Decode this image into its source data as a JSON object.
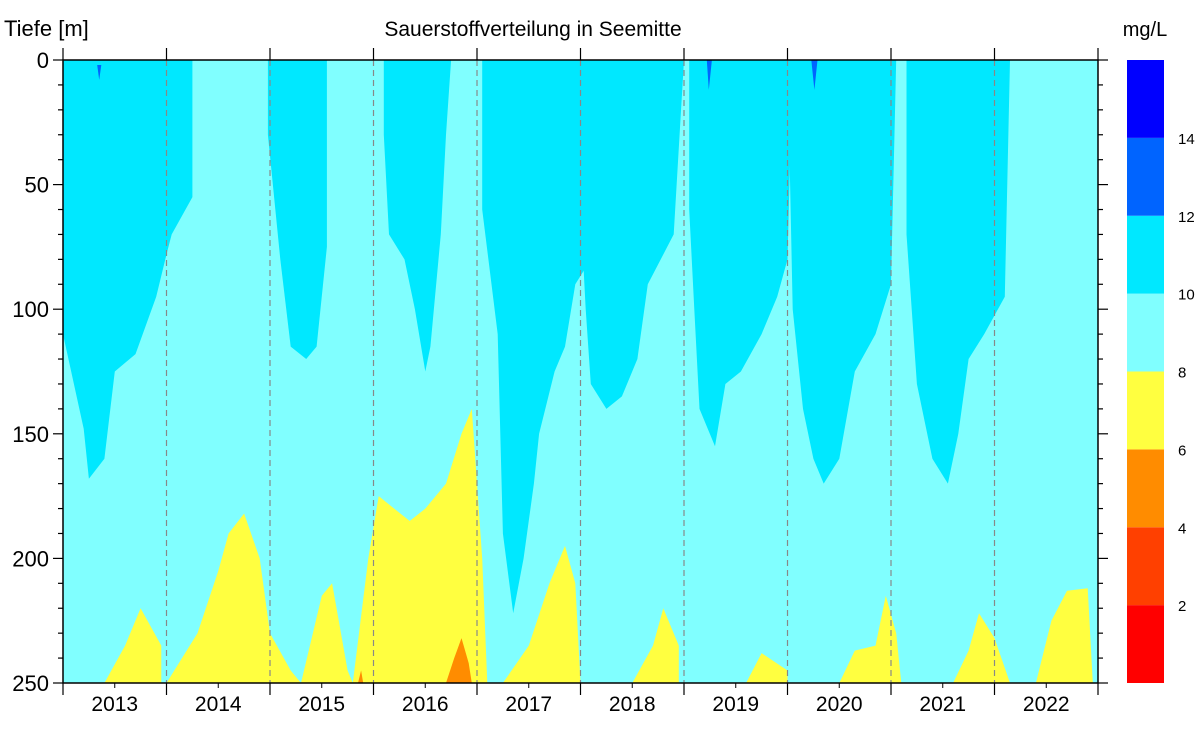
{
  "chart_data": {
    "type": "heatmap",
    "title": "Sauerstoffverteilung in Seemitte",
    "ylabel": "Tiefe [m]",
    "xlabel": "",
    "ylim": [
      0,
      250
    ],
    "y_inverted": true,
    "y_ticks": [
      "0",
      "50",
      "100",
      "150",
      "200",
      "250"
    ],
    "y_tick_values": [
      0,
      50,
      100,
      150,
      200,
      250
    ],
    "x_range": [
      2013,
      2023
    ],
    "x_categories": [
      "2013",
      "2014",
      "2015",
      "2016",
      "2017",
      "2018",
      "2019",
      "2020",
      "2021",
      "2022"
    ],
    "year_separators": "dashed-gray",
    "colorbar": {
      "unit": "mg/L",
      "levels": [
        0,
        2,
        4,
        6,
        8,
        10,
        12,
        14,
        16
      ],
      "tick_labels": [
        "2",
        "4",
        "6",
        "8",
        "10",
        "12",
        "14"
      ],
      "colors": [
        "#ff0000",
        "#ff4000",
        "#ff8c00",
        "#ffff40",
        "#80ffff",
        "#00e8ff",
        "#0064ff",
        "#0000ff"
      ]
    },
    "background_class_color": "#80ffff",
    "regions": [
      {
        "class": "10-12",
        "color": "#00e8ff",
        "boundary": [
          [
            2013.0,
            0
          ],
          [
            2013.0,
            110
          ],
          [
            2013.2,
            148
          ],
          [
            2013.25,
            168
          ],
          [
            2013.4,
            160
          ],
          [
            2013.5,
            125
          ],
          [
            2013.7,
            118
          ],
          [
            2013.9,
            95
          ],
          [
            2014.0,
            78
          ],
          [
            2014.05,
            70
          ],
          [
            2014.25,
            55
          ],
          [
            2014.25,
            0
          ]
        ]
      },
      {
        "class": "10-12",
        "color": "#00e8ff",
        "boundary": [
          [
            2014.98,
            0
          ],
          [
            2014.98,
            30
          ],
          [
            2015.1,
            80
          ],
          [
            2015.2,
            115
          ],
          [
            2015.35,
            120
          ],
          [
            2015.45,
            115
          ],
          [
            2015.55,
            75
          ],
          [
            2015.55,
            0
          ]
        ]
      },
      {
        "class": "10-12",
        "color": "#00e8ff",
        "boundary": [
          [
            2016.1,
            0
          ],
          [
            2016.1,
            30
          ],
          [
            2016.15,
            70
          ],
          [
            2016.3,
            80
          ],
          [
            2016.4,
            100
          ],
          [
            2016.5,
            125
          ],
          [
            2016.55,
            115
          ],
          [
            2016.65,
            70
          ],
          [
            2016.7,
            30
          ],
          [
            2016.75,
            0
          ]
        ]
      },
      {
        "class": "10-12",
        "color": "#00e8ff",
        "boundary": [
          [
            2017.05,
            0
          ],
          [
            2017.05,
            60
          ],
          [
            2017.2,
            110
          ],
          [
            2017.25,
            190
          ],
          [
            2017.35,
            222
          ],
          [
            2017.45,
            200
          ],
          [
            2017.55,
            170
          ],
          [
            2017.6,
            150
          ],
          [
            2017.75,
            125
          ],
          [
            2017.85,
            115
          ],
          [
            2017.95,
            90
          ],
          [
            2018.1,
            80
          ],
          [
            2018.2,
            60
          ],
          [
            2018.25,
            0
          ]
        ]
      },
      {
        "class": "10-12",
        "color": "#00e8ff",
        "boundary": [
          [
            2018.0,
            0
          ],
          [
            2018.0,
            60
          ],
          [
            2018.05,
            100
          ],
          [
            2018.1,
            130
          ],
          [
            2018.25,
            140
          ],
          [
            2018.4,
            135
          ],
          [
            2018.55,
            120
          ],
          [
            2018.65,
            90
          ],
          [
            2018.9,
            70
          ],
          [
            2019.0,
            0
          ]
        ]
      },
      {
        "class": "10-12",
        "color": "#00e8ff",
        "boundary": [
          [
            2019.05,
            0
          ],
          [
            2019.05,
            60
          ],
          [
            2019.1,
            100
          ],
          [
            2019.15,
            140
          ],
          [
            2019.3,
            155
          ],
          [
            2019.4,
            130
          ],
          [
            2019.55,
            125
          ],
          [
            2019.75,
            110
          ],
          [
            2019.9,
            95
          ],
          [
            2020.0,
            80
          ],
          [
            2020.05,
            0
          ]
        ]
      },
      {
        "class": "10-12",
        "color": "#00e8ff",
        "boundary": [
          [
            2020.0,
            0
          ],
          [
            2020.05,
            100
          ],
          [
            2020.15,
            140
          ],
          [
            2020.25,
            160
          ],
          [
            2020.35,
            170
          ],
          [
            2020.5,
            160
          ],
          [
            2020.65,
            125
          ],
          [
            2020.85,
            110
          ],
          [
            2021.0,
            90
          ],
          [
            2021.05,
            0
          ]
        ]
      },
      {
        "class": "10-12",
        "color": "#00e8ff",
        "boundary": [
          [
            2021.15,
            0
          ],
          [
            2021.15,
            70
          ],
          [
            2021.25,
            130
          ],
          [
            2021.4,
            160
          ],
          [
            2021.55,
            170
          ],
          [
            2021.65,
            150
          ],
          [
            2021.75,
            120
          ],
          [
            2021.9,
            110
          ],
          [
            2022.1,
            95
          ],
          [
            2022.15,
            0
          ]
        ]
      },
      {
        "class": "6-8",
        "color": "#ffff40",
        "boundary": [
          [
            2013.4,
            250
          ],
          [
            2013.6,
            235
          ],
          [
            2013.75,
            220
          ],
          [
            2013.95,
            235
          ],
          [
            2013.95,
            250
          ]
        ]
      },
      {
        "class": "6-8",
        "color": "#ffff40",
        "boundary": [
          [
            2014.0,
            250
          ],
          [
            2014.3,
            230
          ],
          [
            2014.5,
            205
          ],
          [
            2014.6,
            190
          ],
          [
            2014.75,
            182
          ],
          [
            2014.9,
            200
          ],
          [
            2015.0,
            230
          ],
          [
            2015.2,
            245
          ],
          [
            2015.3,
            250
          ]
        ]
      },
      {
        "class": "6-8",
        "color": "#ffff40",
        "boundary": [
          [
            2015.3,
            250
          ],
          [
            2015.5,
            215
          ],
          [
            2015.6,
            210
          ],
          [
            2015.75,
            245
          ],
          [
            2015.8,
            250
          ]
        ]
      },
      {
        "class": "6-8",
        "color": "#ffff40",
        "boundary": [
          [
            2015.8,
            250
          ],
          [
            2015.95,
            200
          ],
          [
            2016.05,
            175
          ],
          [
            2016.2,
            180
          ],
          [
            2016.35,
            185
          ],
          [
            2016.5,
            180
          ],
          [
            2016.7,
            170
          ],
          [
            2016.85,
            150
          ],
          [
            2016.95,
            140
          ],
          [
            2017.05,
            200
          ],
          [
            2017.1,
            250
          ]
        ]
      },
      {
        "class": "6-8",
        "color": "#ffff40",
        "boundary": [
          [
            2017.25,
            250
          ],
          [
            2017.5,
            235
          ],
          [
            2017.7,
            210
          ],
          [
            2017.85,
            195
          ],
          [
            2017.95,
            210
          ],
          [
            2018.0,
            250
          ]
        ]
      },
      {
        "class": "6-8",
        "color": "#ffff40",
        "boundary": [
          [
            2018.5,
            250
          ],
          [
            2018.7,
            235
          ],
          [
            2018.8,
            220
          ],
          [
            2018.95,
            235
          ],
          [
            2018.95,
            250
          ]
        ]
      },
      {
        "class": "6-8",
        "color": "#ffff40",
        "boundary": [
          [
            2019.6,
            250
          ],
          [
            2019.75,
            238
          ],
          [
            2020.0,
            245
          ],
          [
            2020.0,
            250
          ]
        ]
      },
      {
        "class": "6-8",
        "color": "#ffff40",
        "boundary": [
          [
            2020.5,
            250
          ],
          [
            2020.65,
            237
          ],
          [
            2020.85,
            235
          ],
          [
            2020.95,
            215
          ],
          [
            2021.05,
            230
          ],
          [
            2021.1,
            250
          ]
        ]
      },
      {
        "class": "6-8",
        "color": "#ffff40",
        "boundary": [
          [
            2021.6,
            250
          ],
          [
            2021.75,
            237
          ],
          [
            2021.85,
            222
          ],
          [
            2022.0,
            232
          ],
          [
            2022.15,
            250
          ]
        ]
      },
      {
        "class": "6-8",
        "color": "#ffff40",
        "boundary": [
          [
            2022.4,
            250
          ],
          [
            2022.55,
            225
          ],
          [
            2022.7,
            213
          ],
          [
            2022.9,
            212
          ],
          [
            2022.95,
            250
          ]
        ]
      },
      {
        "class": "4-6",
        "color": "#ff8c00",
        "boundary": [
          [
            2016.7,
            250
          ],
          [
            2016.78,
            240
          ],
          [
            2016.85,
            232
          ],
          [
            2016.92,
            242
          ],
          [
            2016.95,
            250
          ]
        ]
      },
      {
        "class": "4-6",
        "color": "#ff8c00",
        "boundary": [
          [
            2015.85,
            250
          ],
          [
            2015.88,
            245
          ],
          [
            2015.9,
            250
          ]
        ]
      },
      {
        "class": "12-14",
        "color": "#0064ff",
        "boundary": [
          [
            2013.33,
            2
          ],
          [
            2013.35,
            8
          ],
          [
            2013.37,
            2
          ]
        ]
      },
      {
        "class": "12-14",
        "color": "#0064ff",
        "boundary": [
          [
            2019.22,
            0
          ],
          [
            2019.24,
            12
          ],
          [
            2019.27,
            0
          ]
        ]
      },
      {
        "class": "12-14",
        "color": "#0064ff",
        "boundary": [
          [
            2020.23,
            0
          ],
          [
            2020.26,
            12
          ],
          [
            2020.29,
            0
          ]
        ]
      }
    ]
  }
}
